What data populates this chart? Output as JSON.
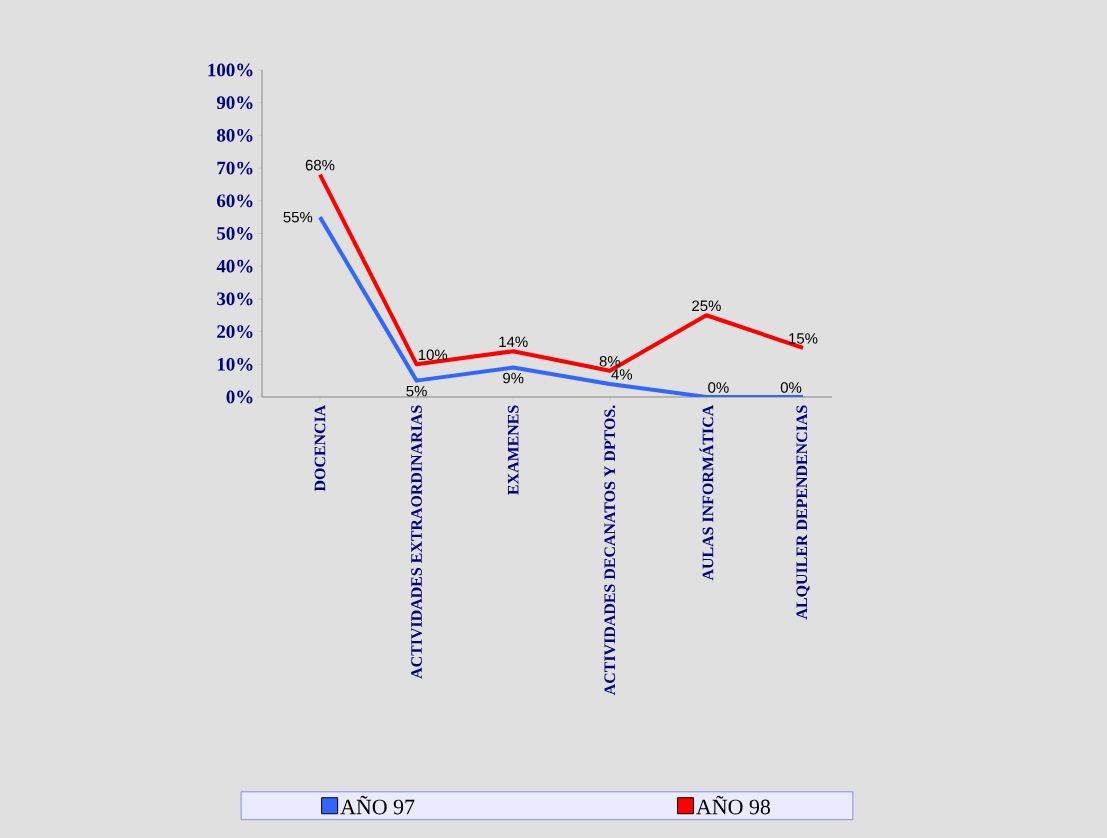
{
  "chart_data": {
    "type": "line",
    "categories": [
      "DOCENCIA",
      "ACTIVIDADES EXTRAORDINARIAS",
      "EXAMENES",
      "ACTIVIDADES DECANATOS Y DPTOS.",
      "AULAS INFORMÁTICA",
      "ALQUILER DEPENDENCIAS"
    ],
    "series": [
      {
        "name": "AÑO 97",
        "color": "#3366ff",
        "values": [
          55,
          5,
          9,
          4,
          0,
          0
        ],
        "value_labels": [
          "55%",
          "5%",
          "9%",
          "4%",
          "0%",
          "0%"
        ]
      },
      {
        "name": "AÑO 98",
        "color": "#ff0000",
        "values": [
          68,
          10,
          14,
          8,
          25,
          15
        ],
        "value_labels": [
          "68%",
          "10%",
          "14%",
          "8%",
          "25%",
          "15%"
        ]
      }
    ],
    "ylim": [
      0,
      100
    ],
    "yticks": [
      {
        "value": 0,
        "label": "0%"
      },
      {
        "value": 10,
        "label": "10%"
      },
      {
        "value": 20,
        "label": "20%"
      },
      {
        "value": 30,
        "label": "30%"
      },
      {
        "value": 40,
        "label": "40%"
      },
      {
        "value": 50,
        "label": "50%"
      },
      {
        "value": 60,
        "label": "60%"
      },
      {
        "value": 70,
        "label": "70%"
      },
      {
        "value": 80,
        "label": "80%"
      },
      {
        "value": 90,
        "label": "90%"
      },
      {
        "value": 100,
        "label": "100%"
      }
    ],
    "grid": false,
    "legend": "bottom",
    "marker": "none",
    "line_style": "solid"
  }
}
